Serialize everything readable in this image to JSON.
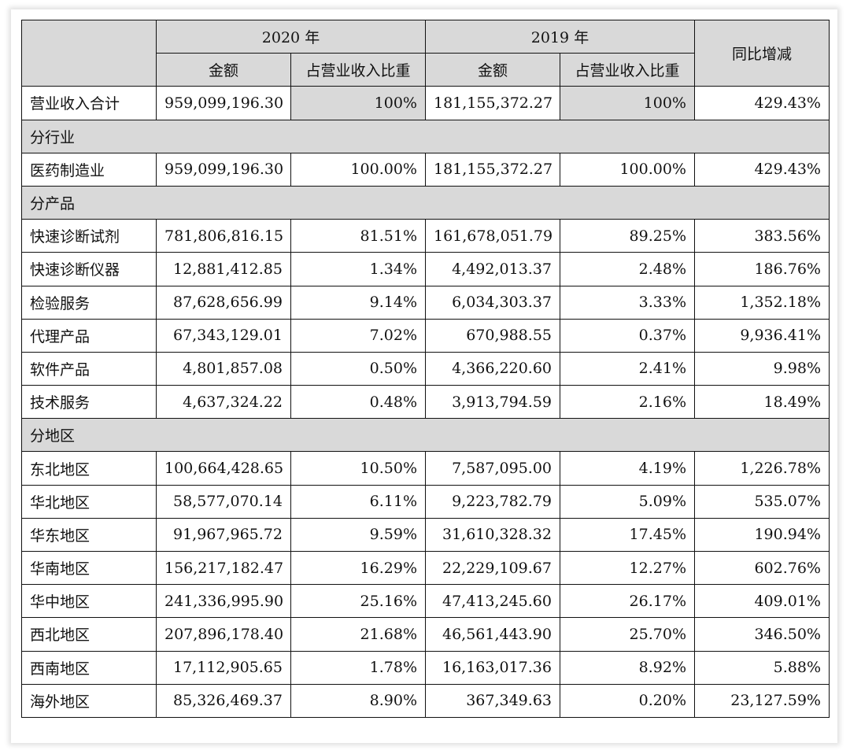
{
  "header": {
    "year_2020": "2020 年",
    "year_2019": "2019 年",
    "yoy": "同比增减",
    "amount": "金额",
    "ratio": "占营业收入比重"
  },
  "total": {
    "label": "营业收入合计",
    "a2020": "959,099,196.30",
    "r2020": "100%",
    "a2019": "181,155,372.27",
    "r2019": "100%",
    "yoy": "429.43%"
  },
  "sections": [
    {
      "title": "分行业",
      "rows": [
        {
          "label": "医药制造业",
          "a2020": "959,099,196.30",
          "r2020": "100.00%",
          "a2019": "181,155,372.27",
          "r2019": "100.00%",
          "yoy": "429.43%"
        }
      ]
    },
    {
      "title": "分产品",
      "rows": [
        {
          "label": "快速诊断试剂",
          "a2020": "781,806,816.15",
          "r2020": "81.51%",
          "a2019": "161,678,051.79",
          "r2019": "89.25%",
          "yoy": "383.56%"
        },
        {
          "label": "快速诊断仪器",
          "a2020": "12,881,412.85",
          "r2020": "1.34%",
          "a2019": "4,492,013.37",
          "r2019": "2.48%",
          "yoy": "186.76%"
        },
        {
          "label": "检验服务",
          "a2020": "87,628,656.99",
          "r2020": "9.14%",
          "a2019": "6,034,303.37",
          "r2019": "3.33%",
          "yoy": "1,352.18%"
        },
        {
          "label": "代理产品",
          "a2020": "67,343,129.01",
          "r2020": "7.02%",
          "a2019": "670,988.55",
          "r2019": "0.37%",
          "yoy": "9,936.41%"
        },
        {
          "label": "软件产品",
          "a2020": "4,801,857.08",
          "r2020": "0.50%",
          "a2019": "4,366,220.60",
          "r2019": "2.41%",
          "yoy": "9.98%"
        },
        {
          "label": "技术服务",
          "a2020": "4,637,324.22",
          "r2020": "0.48%",
          "a2019": "3,913,794.59",
          "r2019": "2.16%",
          "yoy": "18.49%"
        }
      ]
    },
    {
      "title": "分地区",
      "rows": [
        {
          "label": "东北地区",
          "a2020": "100,664,428.65",
          "r2020": "10.50%",
          "a2019": "7,587,095.00",
          "r2019": "4.19%",
          "yoy": "1,226.78%"
        },
        {
          "label": "华北地区",
          "a2020": "58,577,070.14",
          "r2020": "6.11%",
          "a2019": "9,223,782.79",
          "r2019": "5.09%",
          "yoy": "535.07%"
        },
        {
          "label": "华东地区",
          "a2020": "91,967,965.72",
          "r2020": "9.59%",
          "a2019": "31,610,328.32",
          "r2019": "17.45%",
          "yoy": "190.94%"
        },
        {
          "label": "华南地区",
          "a2020": "156,217,182.47",
          "r2020": "16.29%",
          "a2019": "22,229,109.67",
          "r2019": "12.27%",
          "yoy": "602.76%"
        },
        {
          "label": "华中地区",
          "a2020": "241,336,995.90",
          "r2020": "25.16%",
          "a2019": "47,413,245.60",
          "r2019": "26.17%",
          "yoy": "409.01%"
        },
        {
          "label": "西北地区",
          "a2020": "207,896,178.40",
          "r2020": "21.68%",
          "a2019": "46,561,443.90",
          "r2019": "25.70%",
          "yoy": "346.50%"
        },
        {
          "label": "西南地区",
          "a2020": "17,112,905.65",
          "r2020": "1.78%",
          "a2019": "16,163,017.36",
          "r2019": "8.92%",
          "yoy": "5.88%"
        },
        {
          "label": "海外地区",
          "a2020": "85,326,469.37",
          "r2020": "8.90%",
          "a2019": "367,349.63",
          "r2019": "0.20%",
          "yoy": "23,127.59%"
        }
      ]
    }
  ]
}
